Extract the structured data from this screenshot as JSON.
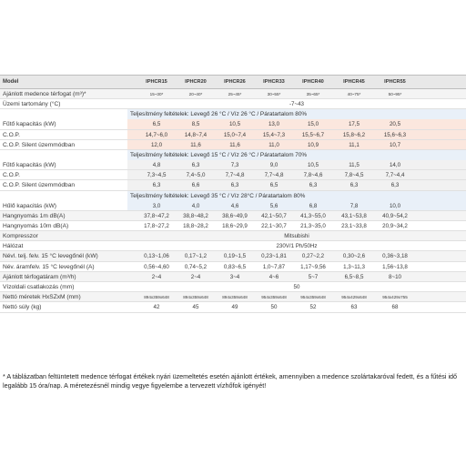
{
  "header": {
    "label": "Model",
    "models": [
      "IPHCR15",
      "IPHCR20",
      "IPHCR26",
      "IPHCR33",
      "IPHCR40",
      "IPHCR45",
      "IPHCR55"
    ]
  },
  "rows": [
    {
      "label": "Ajánlott medence térfogat (m³)*",
      "values": [
        "15~30*",
        "20~40*",
        "25~45*",
        "30~55*",
        "35~65*",
        "40~75*",
        "50~95*"
      ],
      "style": "small"
    },
    {
      "label": "Üzemi tartomány (°C)",
      "span": "-7~43"
    },
    {
      "section": "Teljesítmény feltételek: Levegő 26 °C / Víz 26 °C / Páratartalom 80%"
    },
    {
      "label": "Fűtő kapacitás (kW)",
      "values": [
        "6,5",
        "8,5",
        "10,5",
        "13,0",
        "15,0",
        "17,5",
        "20,5"
      ],
      "bg": "pink"
    },
    {
      "label": "C.O.P.",
      "values": [
        "14,7~6,0",
        "14,8~7,4",
        "15,0~7,4",
        "15,4~7,3",
        "15,5~6,7",
        "15,8~6,2",
        "15,6~6,3"
      ],
      "bg": "pink"
    },
    {
      "label": "C.O.P. Silent üzemmódban",
      "values": [
        "12,0",
        "11,6",
        "11,6",
        "11,0",
        "10,9",
        "11,1",
        "10,7"
      ],
      "bg": "pink"
    },
    {
      "section": "Teljesítmény feltételek: Levegő 15 °C / Víz 26 °C / Páratartalom 70%"
    },
    {
      "label": "Fűtő kapacitás (kW)",
      "values": [
        "4,8",
        "6,3",
        "7,3",
        "9,0",
        "10,5",
        "11,5",
        "14,0"
      ],
      "bg": "graybg"
    },
    {
      "label": "C.O.P.",
      "values": [
        "7,3~4,5",
        "7,4~5,0",
        "7,7~4,8",
        "7,7~4,8",
        "7,8~4,6",
        "7,8~4,5",
        "7,7~4,4"
      ],
      "bg": "graybg"
    },
    {
      "label": "C.O.P. Silent üzemmódban",
      "values": [
        "6,3",
        "6,6",
        "6,3",
        "6,5",
        "6,3",
        "6,3",
        "6,3"
      ],
      "bg": "graybg"
    },
    {
      "section": "Teljesítmény feltételek: Levegő 35 °C / Víz 28°C / Páratartalom 80%"
    },
    {
      "label": "Hűlő kapacitás (kW)",
      "values": [
        "3,0",
        "4,0",
        "4,6",
        "5,6",
        "6,8",
        "7,8",
        "10,0"
      ],
      "bg": "blue"
    },
    {
      "label": "Hangnyomás 1m dB(A)",
      "values": [
        "37,8~47,2",
        "38,8~48,2",
        "38,6~49,9",
        "42,1~50,7",
        "41,3~55,0",
        "43,1~53,8",
        "40,9~54,2"
      ]
    },
    {
      "label": "Hangnyomás 10m dB(A)",
      "values": [
        "17,8~27,2",
        "18,8~28,2",
        "18,6~29,9",
        "22,1~30,7",
        "21,3~35,0",
        "23,1~33,8",
        "20,9~34,2"
      ]
    },
    {
      "label": "Kompresszor",
      "span": "Mitsubishi"
    },
    {
      "label": "Hálózat",
      "span": "230V/1 Ph/50Hz"
    },
    {
      "label": "Névl. telj. felv. 15 °C levegőnél (kW)",
      "values": [
        "0,13~1,06",
        "0,17~1,2",
        "0,19~1,5",
        "0,23~1,81",
        "0,27~2,2",
        "0,30~2,6",
        "0,36~3,18"
      ]
    },
    {
      "label": "Név. áramfelv. 15 °C levegőnél (A)",
      "values": [
        "0,56~4,60",
        "0,74~5,2",
        "0,83~6,5",
        "1,0~7,87",
        "1,17~9,56",
        "1,3~11,3",
        "1,56~13,8"
      ]
    },
    {
      "label": "Ajánlott térfogatáram (m³/h)",
      "values": [
        "2~4",
        "2~4",
        "3~4",
        "4~6",
        "5~7",
        "6,5~8,5",
        "8~10"
      ]
    },
    {
      "label": "Vízoldali csatlakozás (mm)",
      "span": "50"
    },
    {
      "label": "Nettó méretek HxSZxM (mm)",
      "values": [
        "894x359x648",
        "894x359x648",
        "894x359x648",
        "954x359x648",
        "954x359x648",
        "954x429x648",
        "954x429x755"
      ],
      "style": "small"
    },
    {
      "label": "Nettó súly (kg)",
      "values": [
        "42",
        "45",
        "49",
        "50",
        "52",
        "63",
        "68"
      ]
    }
  ],
  "note": "* A táblázatban feltüntetett medence térfogat értékek nyári üzemeltetés esetén ajánlott értékek, amennyiben a medence szolártakaróval fedett, és a fűtési idő legalább 15 óra/nap. A méretezésnél mindig vegye figyelembe a tervezett vízhőfok igényét!"
}
